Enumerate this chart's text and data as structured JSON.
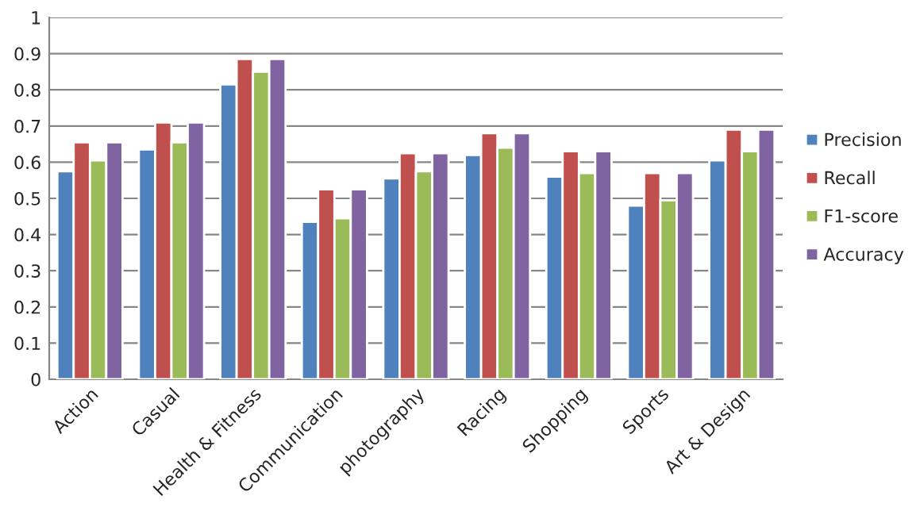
{
  "chart_data": {
    "type": "bar",
    "categories": [
      "Action",
      "Casual",
      "Health & Fitness",
      "Communication",
      "photography",
      "Racing",
      "Shopping",
      "Sports",
      "Art & Design"
    ],
    "series": [
      {
        "name": "Precision",
        "color": "#4f81bd",
        "values": [
          0.575,
          0.635,
          0.815,
          0.435,
          0.555,
          0.62,
          0.56,
          0.48,
          0.605
        ]
      },
      {
        "name": "Recall",
        "color": "#c0504d",
        "values": [
          0.655,
          0.71,
          0.885,
          0.525,
          0.625,
          0.68,
          0.63,
          0.57,
          0.69
        ]
      },
      {
        "name": "F1-score",
        "color": "#9bbb59",
        "values": [
          0.605,
          0.655,
          0.85,
          0.445,
          0.575,
          0.64,
          0.57,
          0.495,
          0.63
        ]
      },
      {
        "name": "Accuracy",
        "color": "#8064a2",
        "values": [
          0.655,
          0.71,
          0.885,
          0.525,
          0.625,
          0.68,
          0.63,
          0.57,
          0.69
        ]
      }
    ],
    "ylim": [
      0,
      1
    ],
    "yticks": [
      0,
      0.1,
      0.2,
      0.3,
      0.4,
      0.5,
      0.6,
      0.7,
      0.8,
      0.9,
      1
    ],
    "grid": "y",
    "legend": "right"
  }
}
